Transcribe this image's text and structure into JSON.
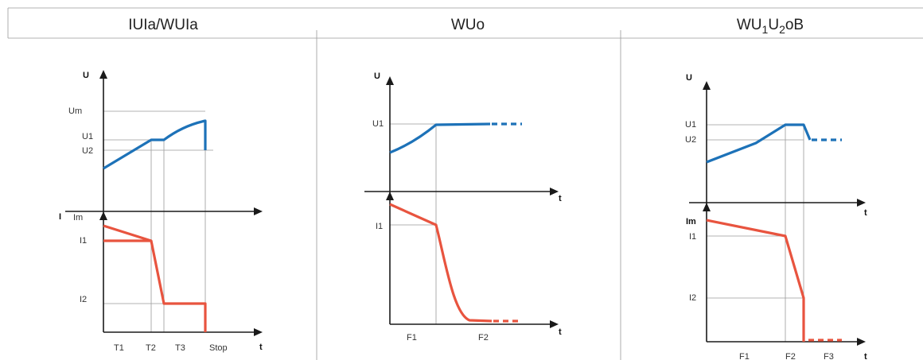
{
  "panels": [
    {
      "title": "IUIa/WUIa",
      "u_axis": "U",
      "i_axis": "I",
      "t_axis": "t",
      "u_levels": [
        "Um",
        "U1",
        "U2"
      ],
      "i_levels": [
        "Im",
        "I1",
        "I2"
      ],
      "phases": [
        "T1",
        "T2",
        "T3",
        "Stop"
      ]
    },
    {
      "title": "WUo",
      "u_axis": "U",
      "t_axis_upper": "t",
      "t_axis": "t",
      "u_levels": [
        "U1"
      ],
      "i_levels": [
        "I1"
      ],
      "phases": [
        "F1",
        "F2"
      ]
    },
    {
      "title_main": "WU",
      "title_sub1": "1",
      "title_mid": "U",
      "title_sub2": "2",
      "title_end": "oB",
      "u_axis": "U",
      "t_axis_upper": "t",
      "t_axis": "t",
      "u_levels": [
        "U1",
        "U2"
      ],
      "i_levels": [
        "Im",
        "I1",
        "I2"
      ],
      "phases": [
        "F1",
        "F2",
        "F3"
      ]
    }
  ],
  "colors": {
    "voltage_curve": "#1d72b8",
    "current_curve": "#e8543f",
    "axes": "#1a1a1a",
    "gridlines": "#9a9a9a"
  }
}
